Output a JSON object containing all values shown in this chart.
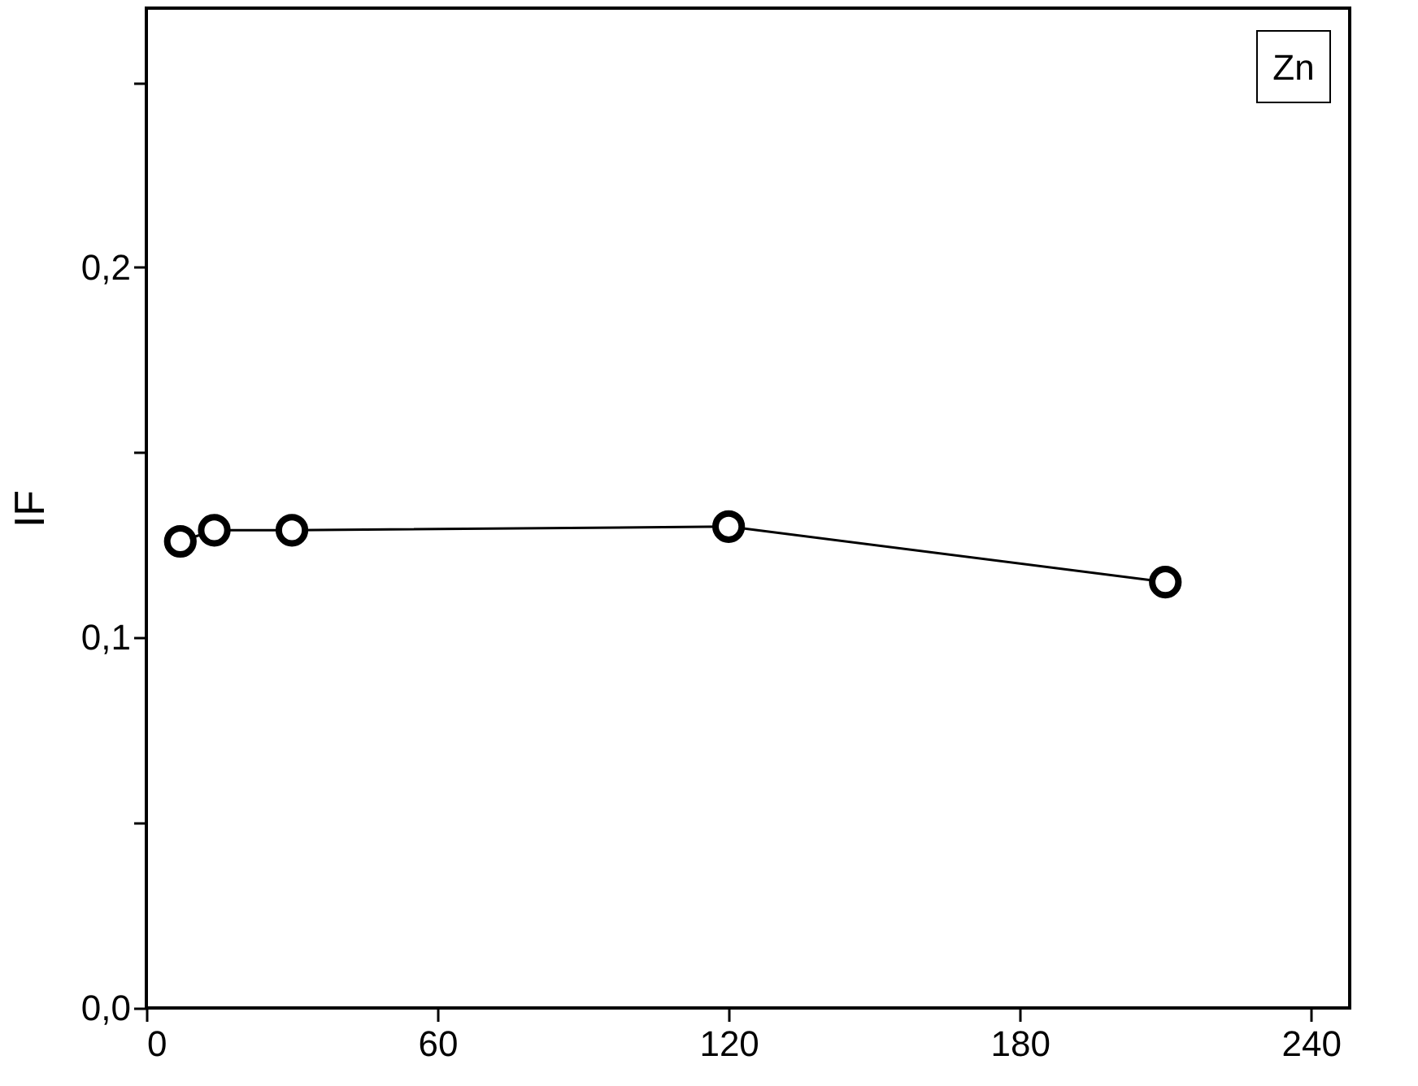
{
  "chart_data": {
    "type": "line",
    "ylabel": "IF",
    "x": [
      7,
      14,
      30,
      120,
      210
    ],
    "series": [
      {
        "color": "#000000",
        "values": [
          0.126,
          0.129,
          0.129,
          0.13,
          0.115
        ]
      }
    ],
    "xlim": [
      0,
      248
    ],
    "xticks": [
      0,
      60,
      120,
      180,
      240
    ],
    "ylim": [
      0,
      0.27
    ],
    "yticks": [
      {
        "value": 0,
        "label": "0,0"
      },
      {
        "value": 0.05,
        "label": null
      },
      {
        "value": 0.1,
        "label": "0,1"
      },
      {
        "value": 0.15,
        "label": null
      },
      {
        "value": 0.2,
        "label": "0,2"
      },
      {
        "value": 0.25,
        "label": null
      }
    ],
    "marker": "circle",
    "line_style": "solid",
    "grid": false,
    "annotations": [
      "Zn"
    ]
  }
}
